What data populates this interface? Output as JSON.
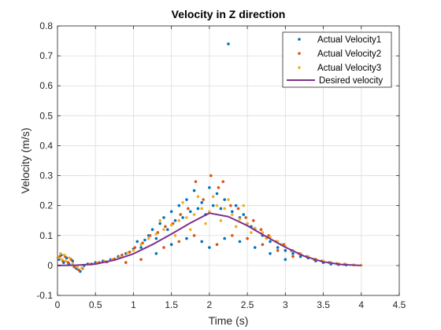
{
  "chart_data": {
    "type": "scatter",
    "title": "Velocity in Z direction",
    "xlabel": "Time (s)",
    "ylabel": "Velocity (m/s)",
    "xlim": [
      0,
      4.5
    ],
    "ylim": [
      -0.1,
      0.8
    ],
    "xticks": [
      0,
      0.5,
      1,
      1.5,
      2,
      2.5,
      3,
      3.5,
      4,
      4.5
    ],
    "yticks": [
      -0.1,
      0,
      0.1,
      0.2,
      0.3,
      0.4,
      0.5,
      0.6,
      0.7,
      0.8
    ],
    "xtick_labels": [
      "0",
      "0.5",
      "1",
      "1.5",
      "2",
      "2.5",
      "3",
      "3.5",
      "4",
      "4.5"
    ],
    "ytick_labels": [
      "-0.1",
      "0",
      "0.1",
      "0.2",
      "0.3",
      "0.4",
      "0.5",
      "0.6",
      "0.7",
      "0.8"
    ],
    "grid": true,
    "legend_position": "top-right",
    "series": [
      {
        "name": "Actual Velocity1",
        "style": "dots",
        "color": "#0072BD",
        "points": [
          [
            0.02,
            0.02
          ],
          [
            0.05,
            0.035
          ],
          [
            0.08,
            0.01
          ],
          [
            0.12,
            0.025
          ],
          [
            0.15,
            0.005
          ],
          [
            0.2,
            0.015
          ],
          [
            0.25,
            -0.01
          ],
          [
            0.3,
            -0.02
          ],
          [
            0.35,
            0.0
          ],
          [
            0.4,
            0.005
          ],
          [
            0.5,
            0.01
          ],
          [
            0.6,
            0.015
          ],
          [
            0.7,
            0.02
          ],
          [
            0.8,
            0.03
          ],
          [
            0.9,
            0.04
          ],
          [
            1.0,
            0.055
          ],
          [
            1.05,
            0.08
          ],
          [
            1.1,
            0.06
          ],
          [
            1.15,
            0.085
          ],
          [
            1.2,
            0.1
          ],
          [
            1.25,
            0.12
          ],
          [
            1.3,
            0.09
          ],
          [
            1.35,
            0.14
          ],
          [
            1.4,
            0.16
          ],
          [
            1.45,
            0.12
          ],
          [
            1.5,
            0.18
          ],
          [
            1.55,
            0.15
          ],
          [
            1.6,
            0.2
          ],
          [
            1.65,
            0.16
          ],
          [
            1.7,
            0.22
          ],
          [
            1.75,
            0.18
          ],
          [
            1.8,
            0.25
          ],
          [
            1.85,
            0.19
          ],
          [
            1.9,
            0.21
          ],
          [
            1.95,
            0.17
          ],
          [
            2.0,
            0.26
          ],
          [
            2.05,
            0.2
          ],
          [
            2.1,
            0.24
          ],
          [
            2.15,
            0.19
          ],
          [
            2.2,
            0.22
          ],
          [
            2.25,
            0.74
          ],
          [
            2.3,
            0.18
          ],
          [
            2.35,
            0.2
          ],
          [
            2.4,
            0.16
          ],
          [
            2.45,
            0.17
          ],
          [
            2.5,
            0.14
          ],
          [
            2.55,
            0.13
          ],
          [
            2.6,
            0.12
          ],
          [
            2.7,
            0.1
          ],
          [
            2.8,
            0.08
          ],
          [
            2.9,
            0.06
          ],
          [
            3.0,
            0.05
          ],
          [
            3.1,
            0.04
          ],
          [
            3.2,
            0.03
          ],
          [
            3.3,
            0.025
          ],
          [
            3.4,
            0.015
          ],
          [
            3.5,
            0.01
          ],
          [
            3.6,
            0.005
          ],
          [
            3.7,
            0.003
          ],
          [
            3.8,
            0.002
          ],
          [
            1.3,
            0.04
          ],
          [
            1.5,
            0.07
          ],
          [
            1.7,
            0.09
          ],
          [
            1.9,
            0.08
          ],
          [
            2.0,
            0.06
          ],
          [
            2.2,
            0.09
          ],
          [
            2.4,
            0.08
          ],
          [
            2.6,
            0.06
          ],
          [
            2.8,
            0.04
          ],
          [
            3.0,
            0.02
          ]
        ]
      },
      {
        "name": "Actual Velocity2",
        "style": "dots",
        "color": "#D95319",
        "points": [
          [
            0.03,
            0.03
          ],
          [
            0.07,
            0.015
          ],
          [
            0.1,
            0.03
          ],
          [
            0.14,
            0.01
          ],
          [
            0.18,
            0.02
          ],
          [
            0.22,
            -0.005
          ],
          [
            0.28,
            -0.015
          ],
          [
            0.33,
            -0.01
          ],
          [
            0.45,
            0.005
          ],
          [
            0.55,
            0.01
          ],
          [
            0.65,
            0.012
          ],
          [
            0.75,
            0.022
          ],
          [
            0.85,
            0.035
          ],
          [
            0.95,
            0.045
          ],
          [
            1.02,
            0.06
          ],
          [
            1.12,
            0.075
          ],
          [
            1.22,
            0.1
          ],
          [
            1.32,
            0.11
          ],
          [
            1.42,
            0.13
          ],
          [
            1.52,
            0.14
          ],
          [
            1.62,
            0.17
          ],
          [
            1.72,
            0.19
          ],
          [
            1.82,
            0.28
          ],
          [
            1.92,
            0.22
          ],
          [
            2.02,
            0.3
          ],
          [
            2.12,
            0.26
          ],
          [
            2.18,
            0.28
          ],
          [
            2.28,
            0.2
          ],
          [
            2.38,
            0.19
          ],
          [
            2.48,
            0.16
          ],
          [
            2.58,
            0.15
          ],
          [
            2.68,
            0.12
          ],
          [
            2.78,
            0.1
          ],
          [
            2.88,
            0.08
          ],
          [
            2.98,
            0.07
          ],
          [
            3.08,
            0.05
          ],
          [
            3.18,
            0.04
          ],
          [
            3.28,
            0.03
          ],
          [
            3.38,
            0.02
          ],
          [
            3.48,
            0.015
          ],
          [
            3.58,
            0.01
          ],
          [
            3.68,
            0.006
          ],
          [
            3.78,
            0.004
          ],
          [
            3.9,
            0.002
          ],
          [
            1.4,
            0.06
          ],
          [
            1.6,
            0.08
          ],
          [
            1.8,
            0.1
          ],
          [
            2.1,
            0.07
          ],
          [
            2.3,
            0.1
          ],
          [
            2.5,
            0.09
          ],
          [
            2.7,
            0.07
          ],
          [
            2.9,
            0.05
          ],
          [
            3.1,
            0.03
          ],
          [
            1.1,
            0.02
          ],
          [
            0.9,
            0.01
          ]
        ]
      },
      {
        "name": "Actual Velocity3",
        "style": "dots",
        "color": "#EDB120",
        "points": [
          [
            0.01,
            0.025
          ],
          [
            0.04,
            0.04
          ],
          [
            0.06,
            0.02
          ],
          [
            0.09,
            0.035
          ],
          [
            0.11,
            0.015
          ],
          [
            0.16,
            0.025
          ],
          [
            0.2,
            0.005
          ],
          [
            0.26,
            -0.005
          ],
          [
            0.32,
            -0.008
          ],
          [
            0.42,
            0.004
          ],
          [
            0.52,
            0.008
          ],
          [
            0.62,
            0.014
          ],
          [
            0.72,
            0.02
          ],
          [
            0.82,
            0.028
          ],
          [
            0.92,
            0.042
          ],
          [
            1.0,
            0.05
          ],
          [
            1.1,
            0.07
          ],
          [
            1.2,
            0.09
          ],
          [
            1.3,
            0.105
          ],
          [
            1.4,
            0.12
          ],
          [
            1.5,
            0.135
          ],
          [
            1.6,
            0.15
          ],
          [
            1.7,
            0.16
          ],
          [
            1.8,
            0.17
          ],
          [
            1.9,
            0.19
          ],
          [
            2.0,
            0.18
          ],
          [
            2.05,
            0.23
          ],
          [
            2.1,
            0.2
          ],
          [
            2.2,
            0.19
          ],
          [
            2.3,
            0.17
          ],
          [
            2.4,
            0.155
          ],
          [
            2.5,
            0.14
          ],
          [
            2.6,
            0.125
          ],
          [
            2.7,
            0.11
          ],
          [
            2.8,
            0.095
          ],
          [
            2.9,
            0.08
          ],
          [
            3.0,
            0.065
          ],
          [
            3.1,
            0.05
          ],
          [
            3.2,
            0.04
          ],
          [
            3.3,
            0.03
          ],
          [
            3.4,
            0.022
          ],
          [
            3.5,
            0.015
          ],
          [
            3.6,
            0.01
          ],
          [
            3.7,
            0.006
          ],
          [
            3.8,
            0.004
          ],
          [
            3.9,
            0.002
          ],
          [
            4.0,
            0.001
          ],
          [
            1.55,
            0.1
          ],
          [
            1.75,
            0.12
          ],
          [
            1.95,
            0.14
          ],
          [
            2.15,
            0.15
          ],
          [
            2.35,
            0.13
          ],
          [
            2.55,
            0.11
          ],
          [
            2.75,
            0.09
          ],
          [
            2.95,
            0.07
          ],
          [
            1.65,
            0.21
          ],
          [
            1.85,
            0.23
          ],
          [
            2.25,
            0.22
          ],
          [
            2.45,
            0.2
          ],
          [
            1.35,
            0.15
          ]
        ]
      },
      {
        "name": "Desired velocity",
        "style": "line",
        "color": "#7E2F8E",
        "x": [
          0,
          0.25,
          0.5,
          0.75,
          1.0,
          1.25,
          1.5,
          1.75,
          2.0,
          2.25,
          2.5,
          2.75,
          3.0,
          3.25,
          3.5,
          3.75,
          4.0
        ],
        "y": [
          0,
          0.001,
          0.005,
          0.018,
          0.039,
          0.07,
          0.105,
          0.142,
          0.175,
          0.163,
          0.133,
          0.096,
          0.061,
          0.031,
          0.012,
          0.003,
          0.0
        ]
      }
    ]
  }
}
